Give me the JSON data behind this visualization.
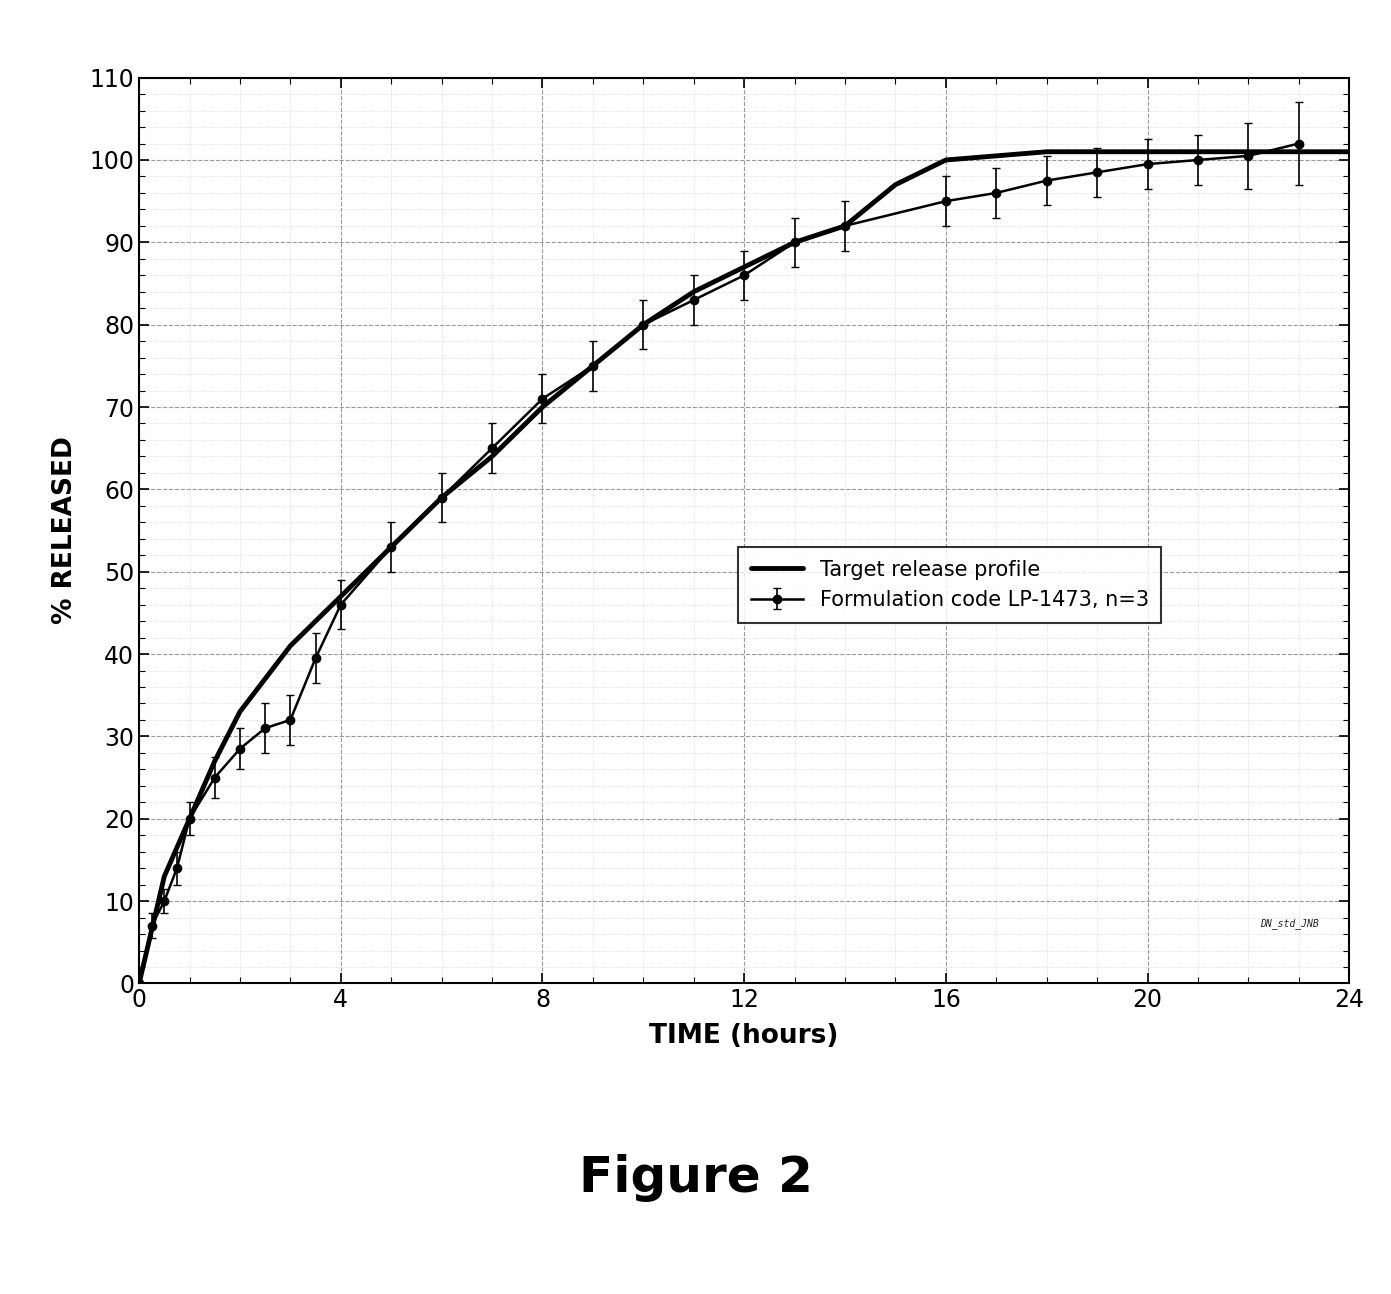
{
  "lp1473_x": [
    0,
    0.25,
    0.5,
    0.75,
    1.0,
    1.5,
    2.0,
    2.5,
    3.0,
    3.5,
    4.0,
    5.0,
    6.0,
    7.0,
    8.0,
    9.0,
    10.0,
    11.0,
    12.0,
    13.0,
    14.0,
    16.0,
    17.0,
    18.0,
    19.0,
    20.0,
    21.0,
    22.0,
    23.0
  ],
  "lp1473_y": [
    0,
    7,
    10,
    14,
    20,
    25,
    28.5,
    31,
    32,
    39.5,
    46,
    53,
    59,
    65,
    71,
    75,
    80,
    83,
    86,
    90,
    92,
    95,
    96,
    97.5,
    98.5,
    99.5,
    100,
    100.5,
    102
  ],
  "lp1473_yerr": [
    0,
    1.5,
    1.5,
    2,
    2,
    2.5,
    2.5,
    3,
    3,
    3,
    3,
    3,
    3,
    3,
    3,
    3,
    3,
    3,
    3,
    3,
    3,
    3,
    3,
    3,
    3,
    3,
    3,
    4,
    5
  ],
  "target_x": [
    0,
    0.5,
    1.0,
    1.5,
    2.0,
    2.5,
    3.0,
    3.5,
    4.0,
    5.0,
    6.0,
    7.0,
    8.0,
    9.0,
    10.0,
    11.0,
    12.0,
    13.0,
    14.0,
    15.0,
    16.0,
    17.0,
    18.0,
    19.0,
    20.0,
    21.0,
    22.0,
    23.0,
    24.0
  ],
  "target_y": [
    0,
    13,
    20,
    27,
    33,
    37,
    41,
    44,
    47,
    53,
    59,
    64,
    70,
    75,
    80,
    84,
    87,
    90,
    92,
    97,
    100,
    100.5,
    101,
    101,
    101,
    101,
    101,
    101,
    101
  ],
  "xlabel": "TIME (hours)",
  "ylabel": "% RELEASED",
  "title": "Figure 2",
  "legend1": "Formulation code LP-1473, n=3",
  "legend2": "Target release profile",
  "xlim": [
    0,
    24
  ],
  "ylim": [
    0,
    110
  ],
  "yticks": [
    0,
    10,
    20,
    30,
    40,
    50,
    60,
    70,
    80,
    90,
    100,
    110
  ],
  "xticks": [
    0,
    4,
    8,
    12,
    16,
    20,
    24
  ],
  "line_color": "#000000",
  "bg_color": "#ffffff",
  "watermark": "DN_std_JNB"
}
